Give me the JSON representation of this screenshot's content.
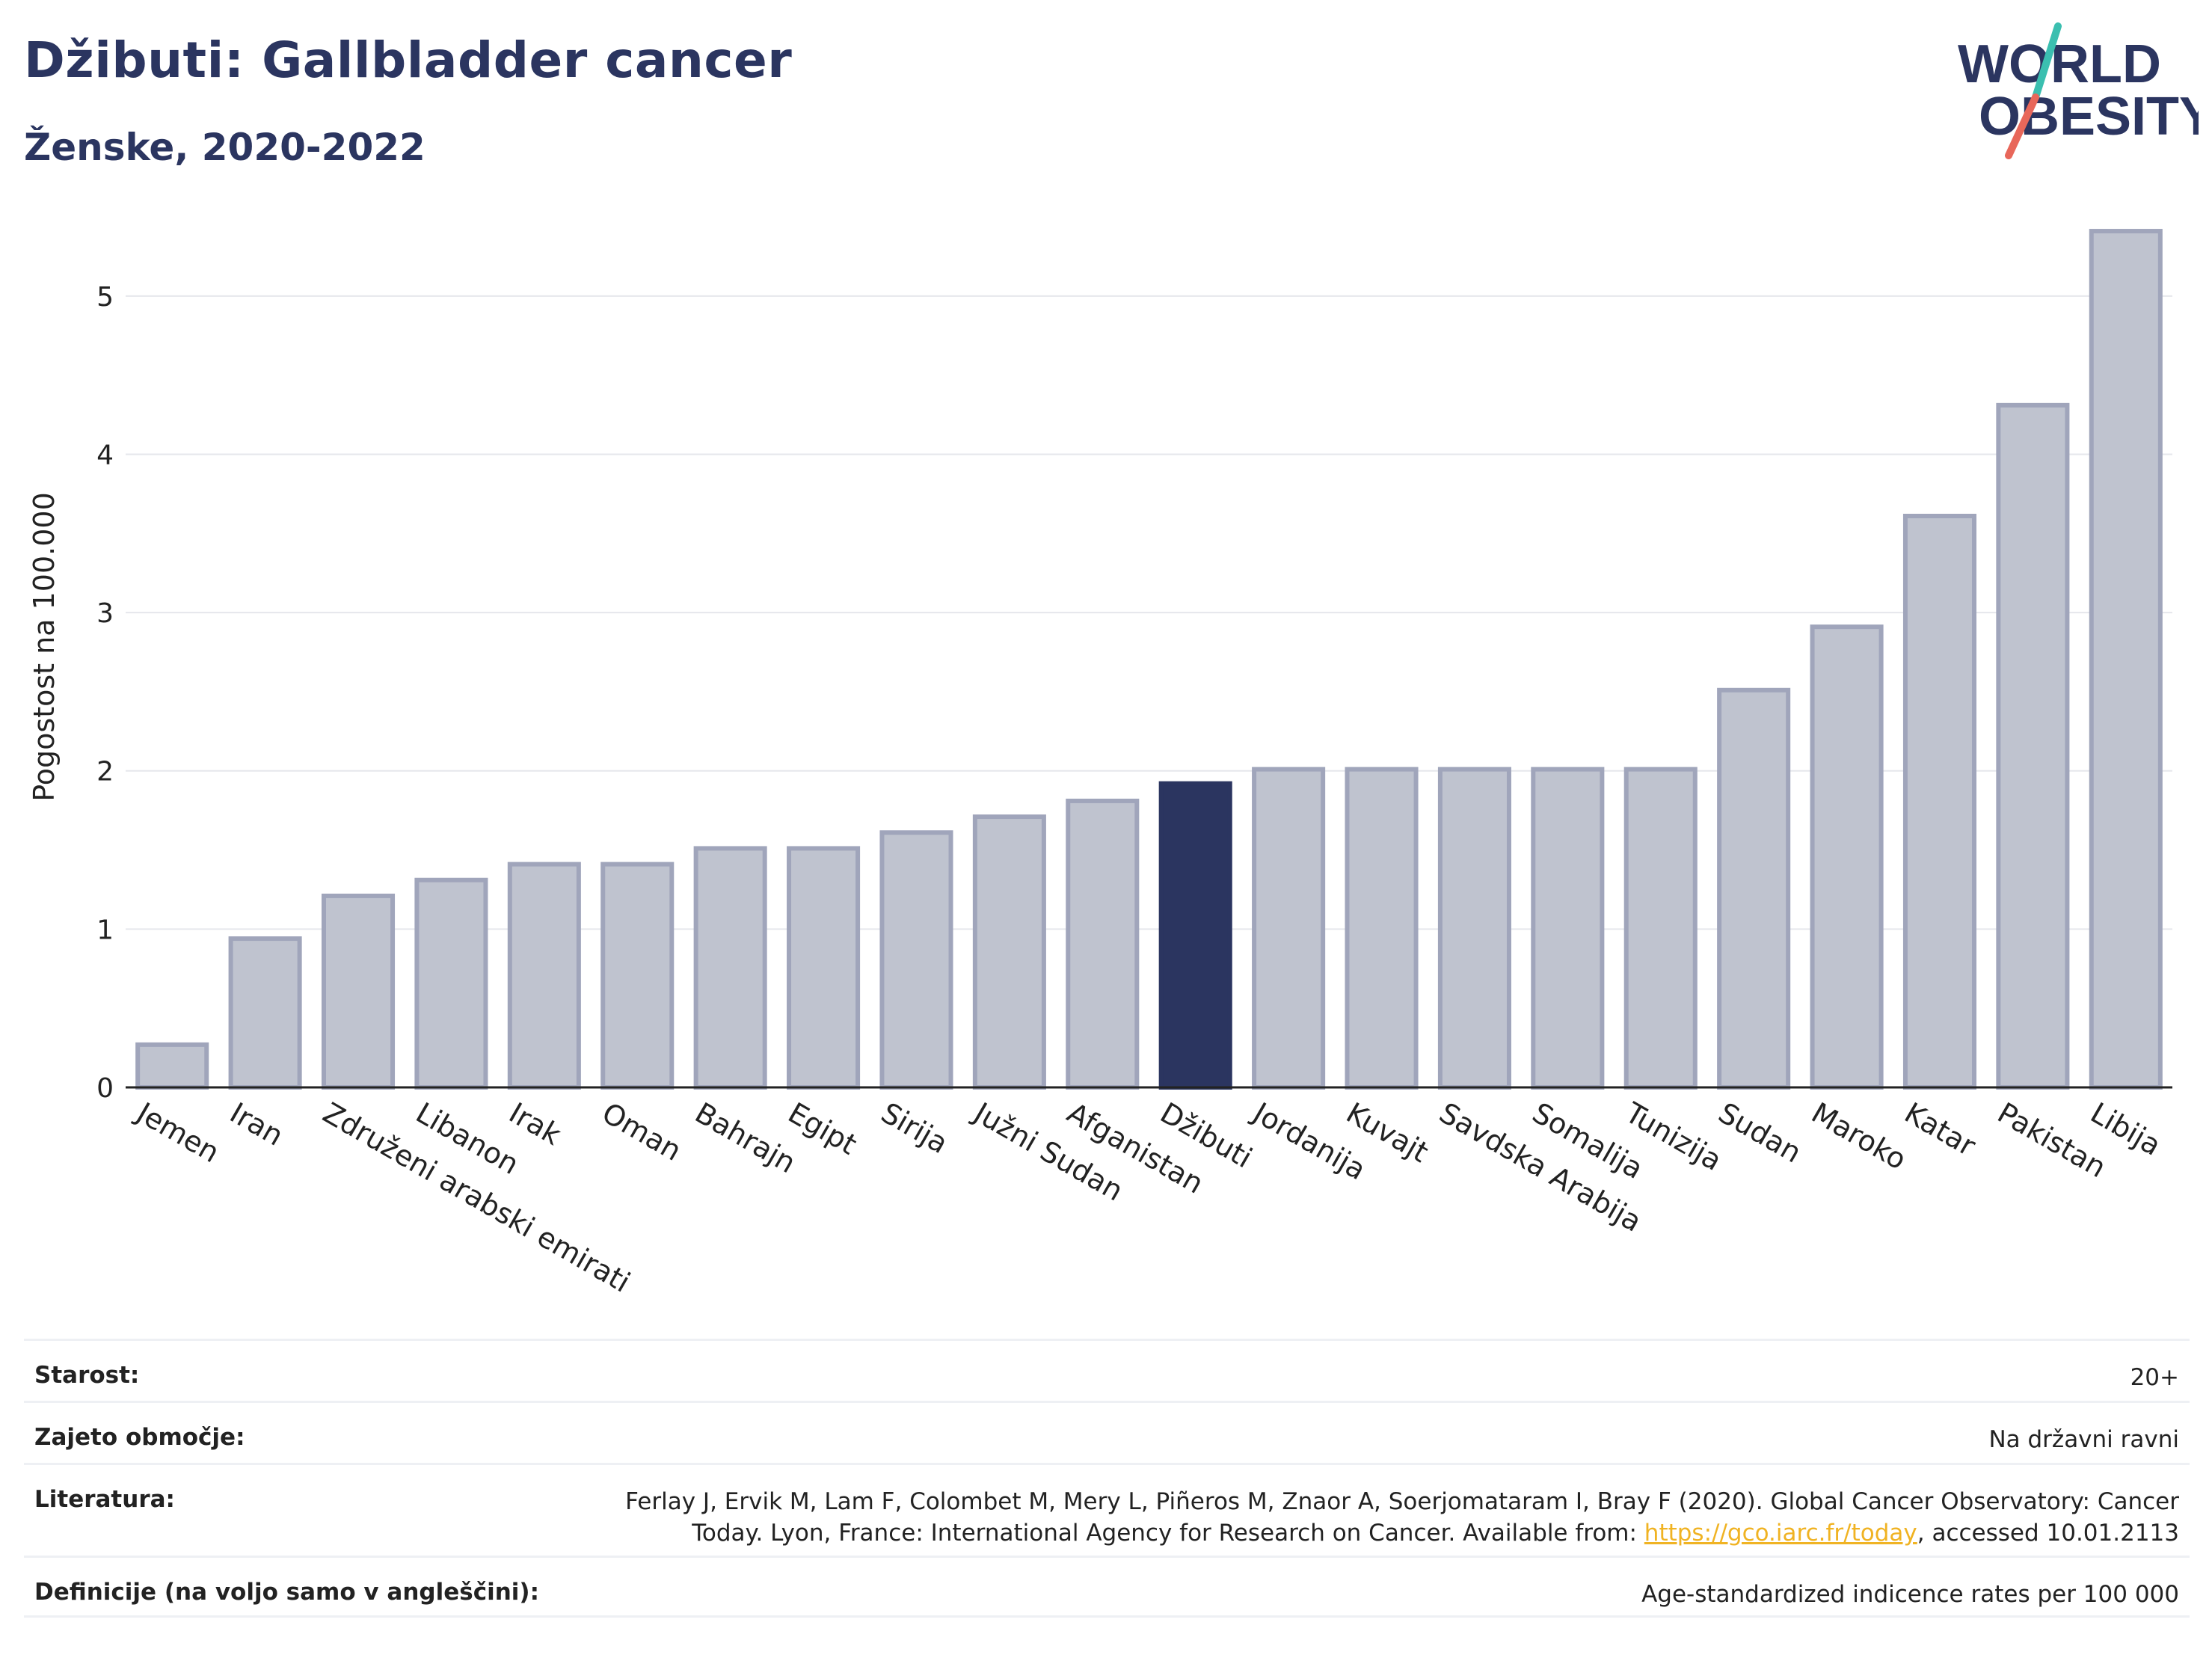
{
  "header": {
    "title": "Džibuti: Gallbladder cancer",
    "subtitle": "Ženske, 2020-2022",
    "logo_line1": "WORLD",
    "logo_line2": "OBESITY"
  },
  "colors": {
    "accent": "#2b3560",
    "bar": "#bfc3cf",
    "bar_border": "#a0a5bb",
    "highlight": "#2b3560",
    "grid": "#e6e7ec",
    "link": "#f0b323",
    "logo_teal": "#3bbfb0",
    "logo_red": "#e8675a"
  },
  "chart_data": {
    "type": "bar",
    "categories": [
      "Jemen",
      "Iran",
      "Združeni arabski emirati",
      "Libanon",
      "Irak",
      "Oman",
      "Bahrajn",
      "Egipt",
      "Sirija",
      "Južni Sudan",
      "Afganistan",
      "Džibuti",
      "Jordanija",
      "Kuvajt",
      "Savdska Arabija",
      "Somalija",
      "Tunizija",
      "Sudan",
      "Maroko",
      "Katar",
      "Pakistan",
      "Libija"
    ],
    "values": [
      0.27,
      0.94,
      1.21,
      1.31,
      1.41,
      1.41,
      1.51,
      1.51,
      1.61,
      1.71,
      1.81,
      1.92,
      2.01,
      2.01,
      2.01,
      2.01,
      2.01,
      2.51,
      2.91,
      3.61,
      4.31,
      5.41
    ],
    "highlight": "Džibuti",
    "ylabel": "Pogostost na 100.000",
    "ylim": [
      0,
      5.5
    ],
    "yticks": [
      "0",
      "1",
      "2",
      "3",
      "4",
      "5"
    ],
    "grid": true
  },
  "meta": {
    "age_label": "Starost:",
    "age_value": "20+",
    "coverage_label": "Zajeto območje:",
    "coverage_value": "Na državni ravni",
    "lit_label": "Literatura:",
    "lit_line1": "Ferlay J, Ervik M, Lam F, Colombet M, Mery L, Piñeros M, Znaor A, Soerjomataram I, Bray F (2020). Global Cancer Observatory: Cancer",
    "lit_line2_pre": "Today. Lyon, France: International Agency for Research on Cancer. Available from: ",
    "lit_link": "https://gco.iarc.fr/today",
    "lit_line2_post": ", accessed 10.01.2113",
    "def_label": "Definicije (na voljo samo v angleščini):",
    "def_value": "Age-standardized indicence rates per 100 000"
  }
}
